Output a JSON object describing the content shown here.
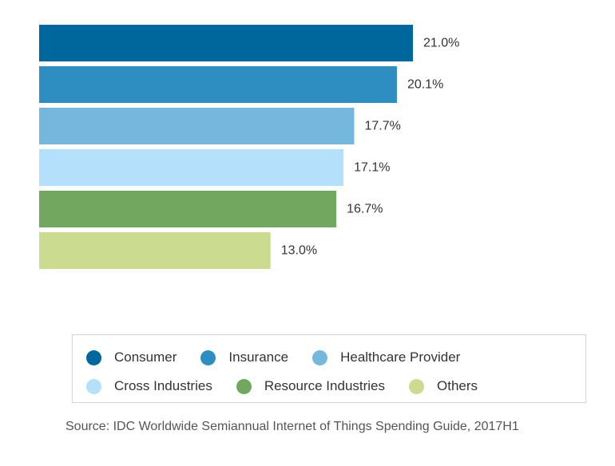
{
  "chart_data": {
    "type": "bar",
    "orientation": "horizontal",
    "title": "",
    "xlabel": "",
    "ylabel": "",
    "xlim": [
      0,
      21.0
    ],
    "grid": false,
    "legend_placement": "bottom",
    "categories": [
      "Consumer",
      "Insurance",
      "Healthcare Provider",
      "Cross Industries",
      "Resource Industries",
      "Others"
    ],
    "values": [
      21.0,
      20.1,
      17.7,
      17.1,
      16.7,
      13.0
    ],
    "value_labels": [
      "21.0%",
      "20.1%",
      "17.7%",
      "17.1%",
      "16.7%",
      "13.0%"
    ],
    "colors": [
      "#00679c",
      "#2e8ec2",
      "#76b7dd",
      "#b5e0fb",
      "#71a75e",
      "#cbdc91"
    ],
    "source": "Source: IDC Worldwide Semiannual Internet of Things Spending Guide, 2017H1"
  }
}
